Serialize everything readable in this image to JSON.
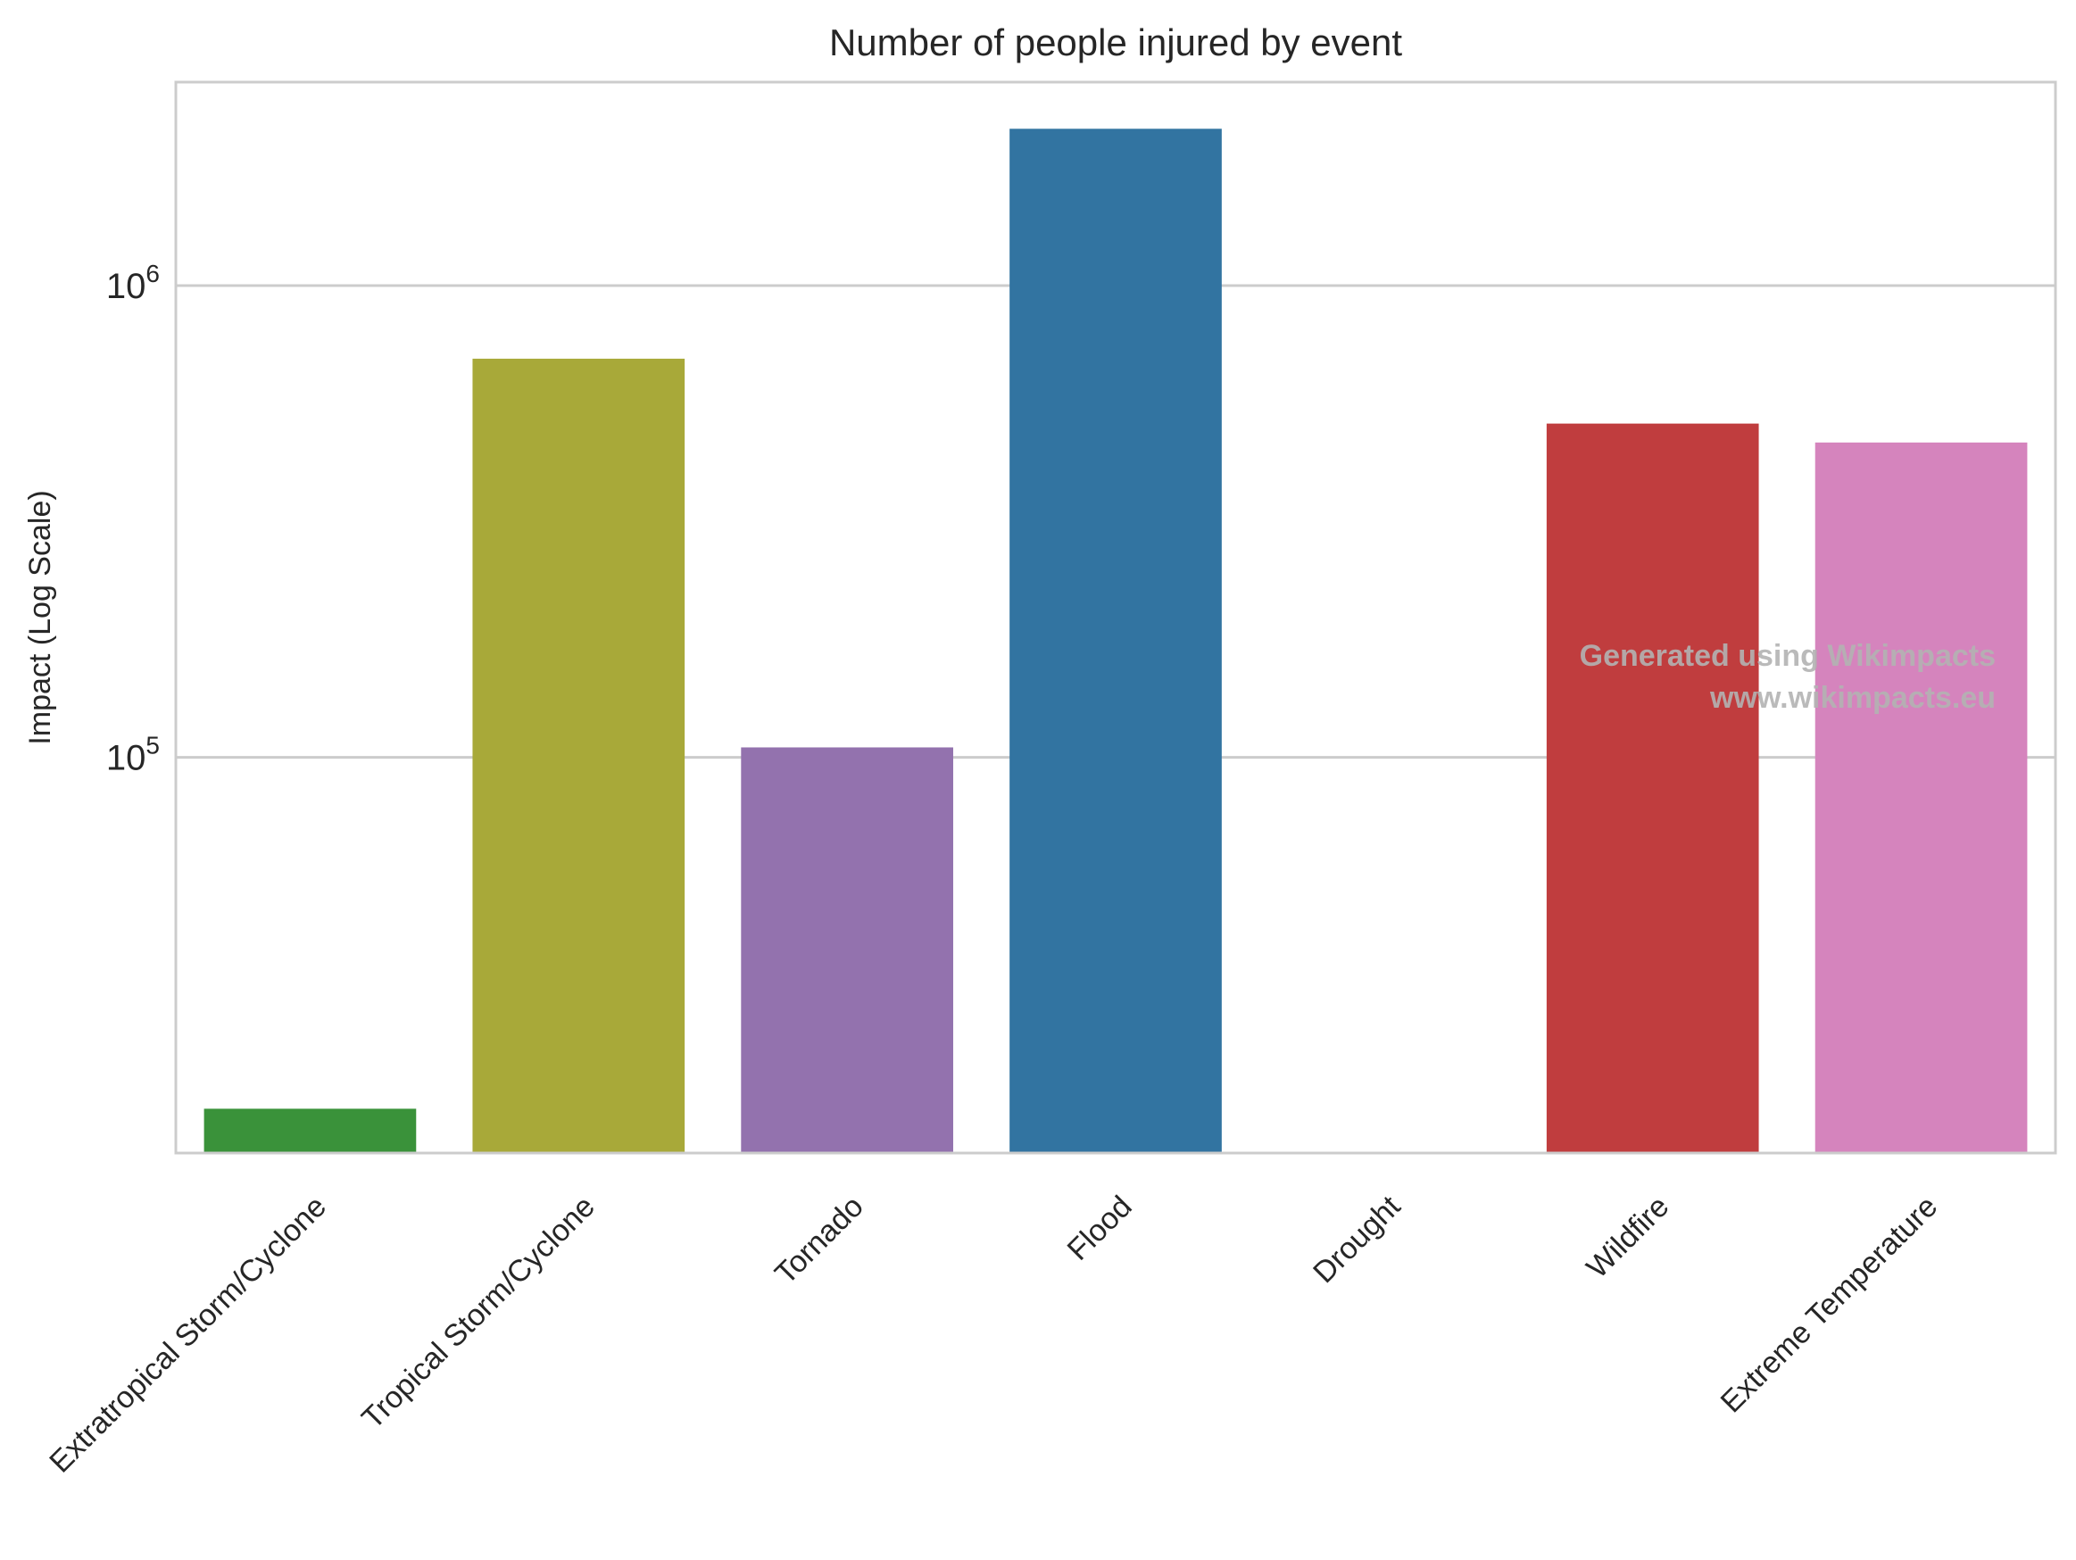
{
  "chart_data": {
    "type": "bar",
    "title": "Number of people injured by event",
    "xlabel": "",
    "ylabel": "Impact (Log Scale)",
    "yscale": "log",
    "ylim": [
      14500,
      2700000
    ],
    "yticks": [
      {
        "value": 100000,
        "base": "10",
        "exp": "5"
      },
      {
        "value": 1000000,
        "base": "10",
        "exp": "6"
      }
    ],
    "grid": "horizontal",
    "categories": [
      "Extratropical Storm/Cyclone",
      "Tropical Storm/Cyclone",
      "Tornado",
      "Flood",
      "Drought",
      "Wildfire",
      "Extreme Temperature"
    ],
    "values": [
      18000,
      700000,
      105000,
      2150000,
      null,
      510000,
      465000
    ],
    "colors": [
      "#3a923a",
      "#a8a939",
      "#9372ae",
      "#3274a1",
      "#8b8b8b",
      "#c03d3e",
      "#d584bd"
    ]
  },
  "watermark": {
    "line1": "Generated using Wikimpacts",
    "line2": "www.wikimpacts.eu"
  }
}
